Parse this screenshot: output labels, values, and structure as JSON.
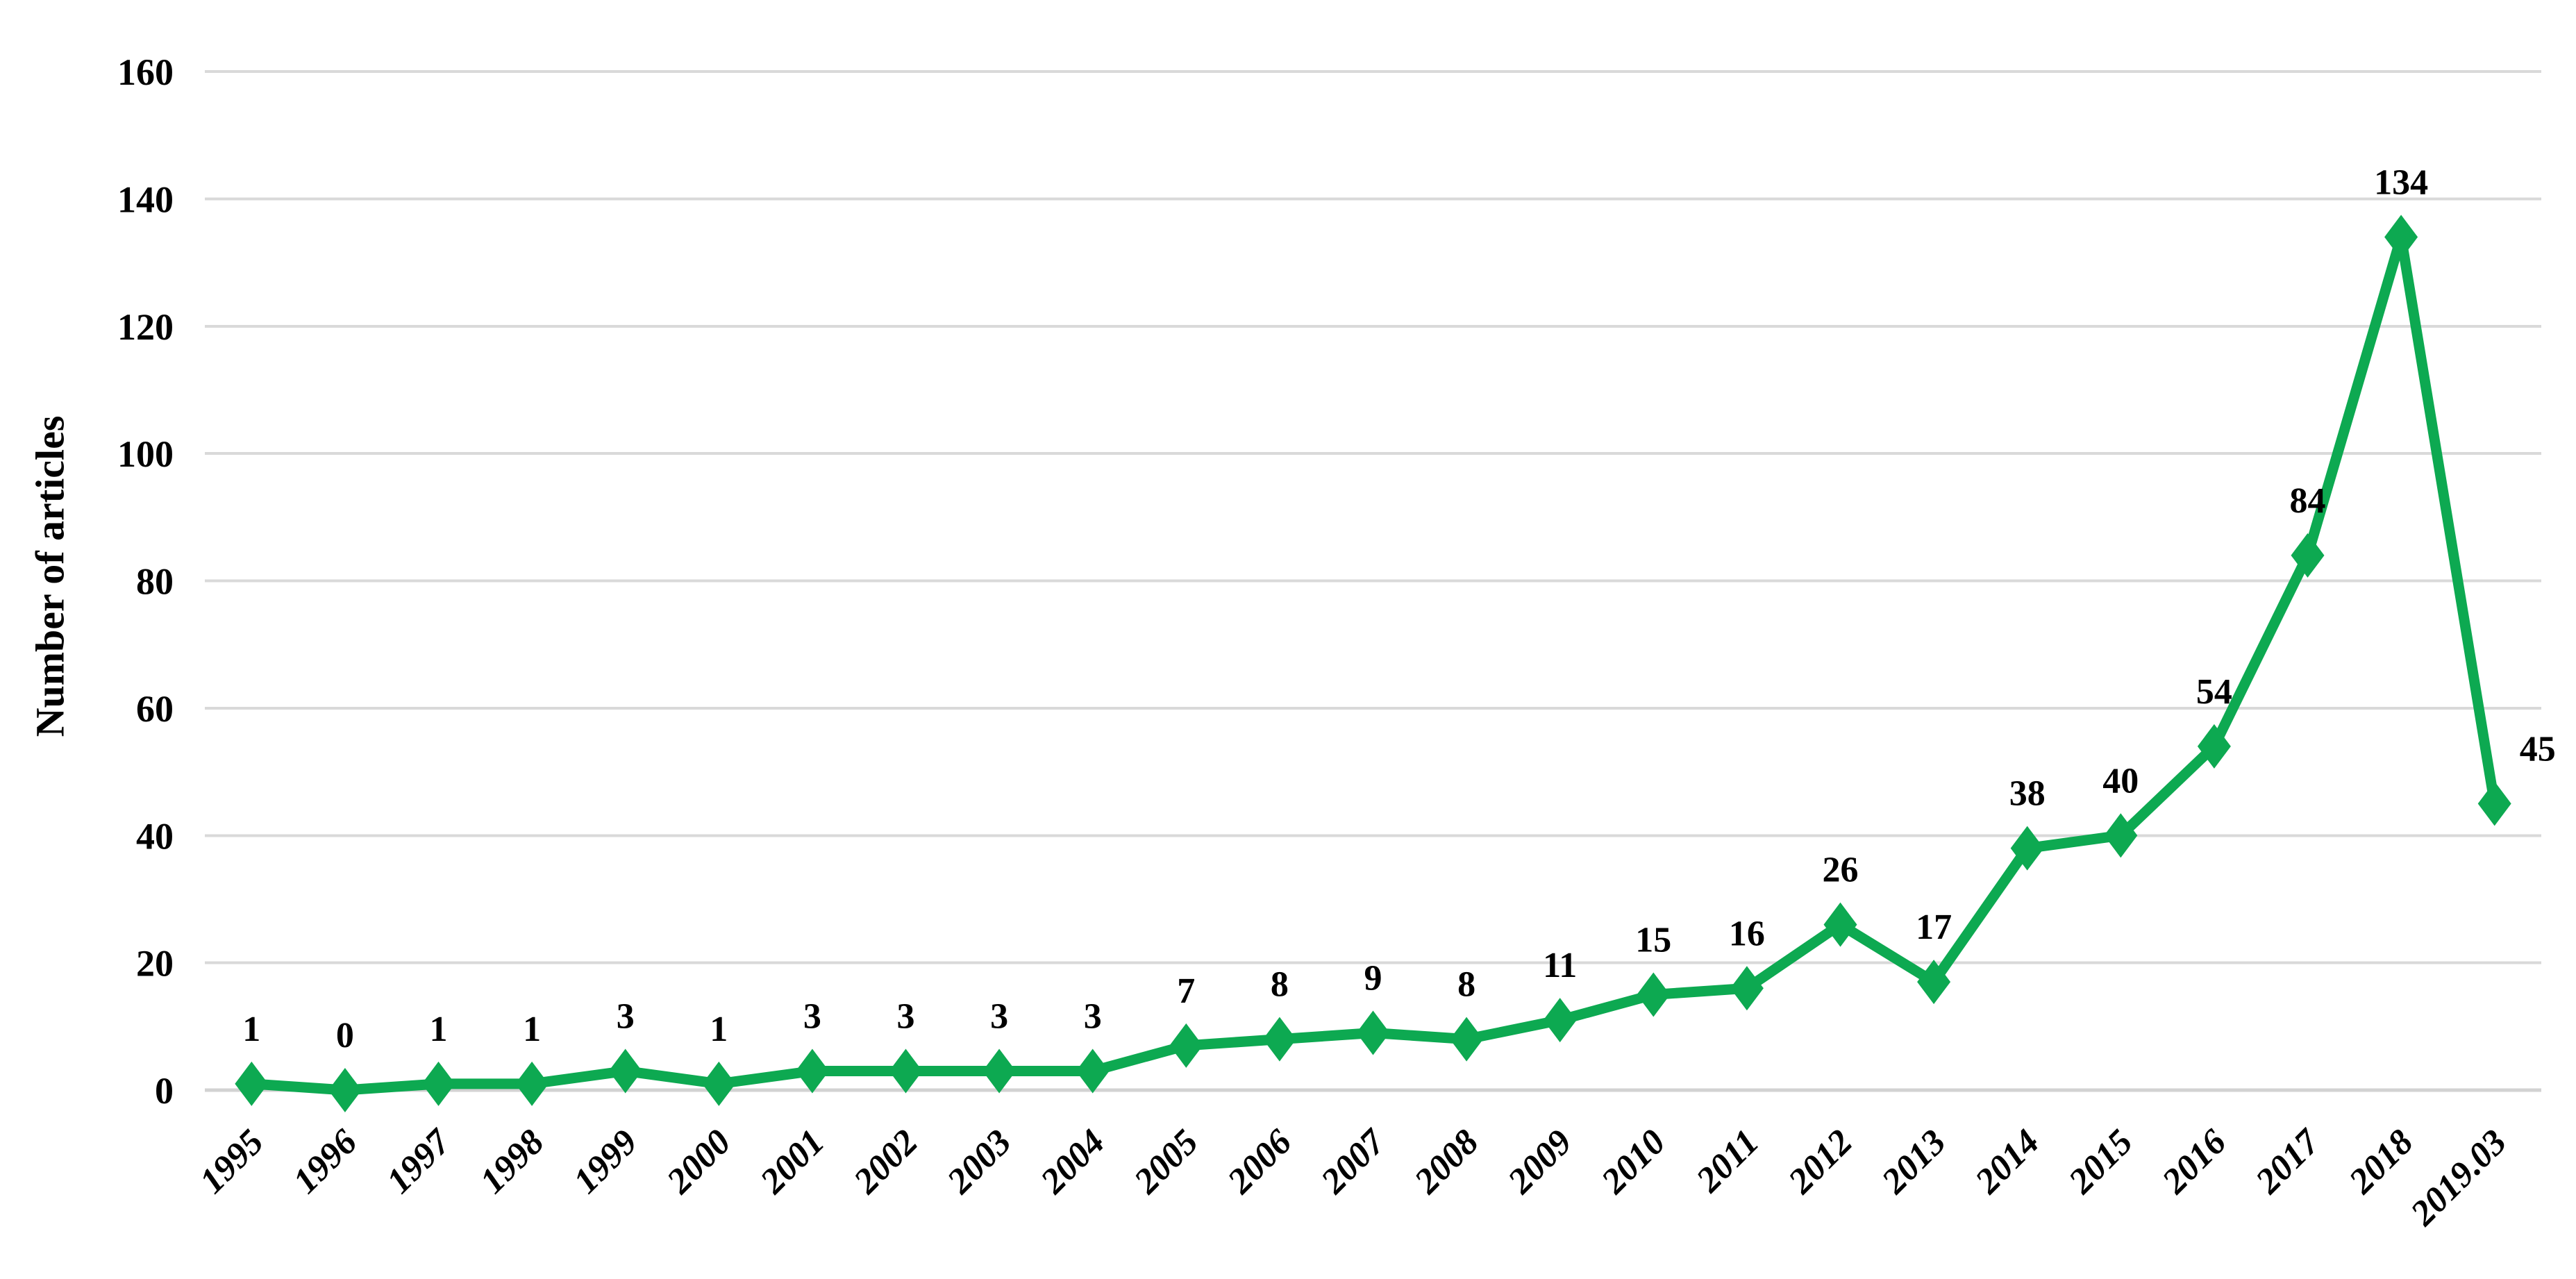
{
  "chart_data": {
    "type": "line",
    "title": "",
    "xlabel": "",
    "ylabel": "Number of articles",
    "categories": [
      "1995",
      "1996",
      "1997",
      "1998",
      "1999",
      "2000",
      "2001",
      "2002",
      "2003",
      "2004",
      "2005",
      "2006",
      "2007",
      "2008",
      "2009",
      "2010",
      "2011",
      "2012",
      "2013",
      "2014",
      "2015",
      "2016",
      "2017",
      "2018",
      "2019.03"
    ],
    "values": [
      1,
      0,
      1,
      1,
      3,
      1,
      3,
      3,
      3,
      3,
      7,
      8,
      9,
      8,
      11,
      15,
      16,
      26,
      17,
      38,
      40,
      54,
      84,
      134,
      45
    ],
    "data_labels": [
      "1",
      "0",
      "1",
      "1",
      "3",
      "1",
      "3",
      "3",
      "3",
      "3",
      "7",
      "8",
      "9",
      "8",
      "11",
      "15",
      "16",
      "26",
      "17",
      "38",
      "40",
      "54",
      "84",
      "134",
      "45"
    ],
    "yticks": [
      0,
      20,
      40,
      60,
      80,
      100,
      120,
      140,
      160
    ],
    "ytick_labels": [
      "0",
      "20",
      "40",
      "60",
      "80",
      "100",
      "120",
      "140",
      "160"
    ],
    "ylim": [
      0,
      160
    ],
    "grid": "on",
    "legend": "none",
    "marker": "diamond",
    "line_color": "#0DA951",
    "grid_color": "#D9D9D9",
    "axis_line_color": "#D2D2D2",
    "text_color": "#000000"
  }
}
